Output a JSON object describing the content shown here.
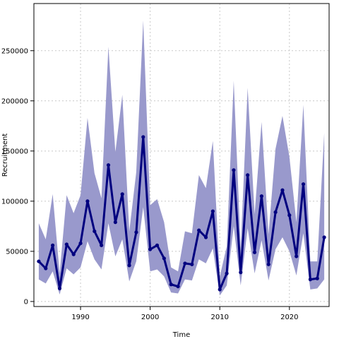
{
  "chart_data": {
    "type": "line",
    "title": "",
    "xlabel": "Time",
    "ylabel": "Recruitment",
    "xlim": [
      1983.3,
      2025.7
    ],
    "ylim": [
      -5000,
      297000
    ],
    "x_ticks": [
      1990,
      2000,
      2010,
      2020
    ],
    "x_tick_labels": [
      "1990",
      "2000",
      "2010",
      "2020"
    ],
    "y_ticks": [
      0,
      50000,
      100000,
      150000,
      200000,
      250000
    ],
    "y_tick_labels": [
      "0",
      "50000",
      "100000",
      "150000",
      "200000",
      "250000"
    ],
    "grid": true,
    "x": [
      1984,
      1985,
      1986,
      1987,
      1988,
      1989,
      1990,
      1991,
      1992,
      1993,
      1994,
      1995,
      1996,
      1997,
      1998,
      1999,
      2000,
      2001,
      2002,
      2003,
      2004,
      2005,
      2006,
      2007,
      2008,
      2009,
      2010,
      2011,
      2012,
      2013,
      2014,
      2015,
      2016,
      2017,
      2018,
      2019,
      2020,
      2021,
      2022,
      2023,
      2024,
      2025
    ],
    "series": [
      {
        "values": [
          40000,
          33000,
          56000,
          13000,
          57000,
          47000,
          58000,
          100000,
          70000,
          56000,
          136000,
          79000,
          107000,
          36000,
          69000,
          164000,
          52000,
          56000,
          43000,
          17000,
          15000,
          38000,
          37000,
          71000,
          64000,
          90000,
          12000,
          28000,
          131000,
          29000,
          126000,
          49000,
          105000,
          37000,
          89000,
          111000,
          86000,
          45000,
          117000,
          22000,
          23000,
          64000
        ],
        "lower": [
          22000,
          18000,
          30000,
          7000,
          33000,
          27000,
          34000,
          60000,
          42000,
          32000,
          78000,
          45000,
          62000,
          20000,
          40000,
          94000,
          30000,
          32000,
          25000,
          9000,
          8000,
          22000,
          21000,
          42000,
          38000,
          53000,
          6000,
          16000,
          75000,
          16000,
          73000,
          28000,
          61000,
          21000,
          52000,
          64000,
          50000,
          26000,
          68000,
          12000,
          13000,
          22000
        ],
        "upper": [
          78000,
          62000,
          107000,
          28000,
          106000,
          88000,
          106000,
          183000,
          128000,
          103000,
          254000,
          149000,
          206000,
          70000,
          129000,
          280000,
          96000,
          102000,
          79000,
          34000,
          30000,
          70000,
          68000,
          126000,
          113000,
          160000,
          25000,
          55000,
          220000,
          53000,
          213000,
          87000,
          179000,
          67000,
          152000,
          185000,
          144000,
          79000,
          196000,
          40000,
          40000,
          168000
        ]
      }
    ]
  },
  "colors": {
    "line": "#00007f",
    "band": "#9999cc",
    "grid": "#c8c8c8",
    "frame": "#000000"
  }
}
